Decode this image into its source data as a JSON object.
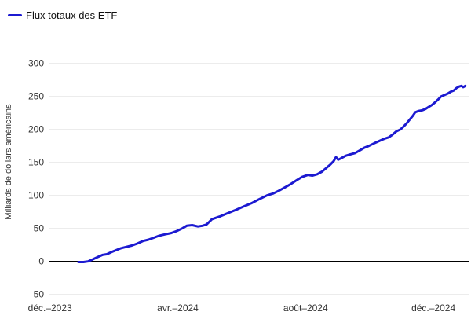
{
  "legend": {
    "label": "Flux totaux des ETF",
    "marker_color": "#1c1ad1"
  },
  "chart_data": {
    "type": "line",
    "title": "",
    "ylabel": "Milliards de dollars américains",
    "xlabel": "",
    "ylim": [
      -50,
      300
    ],
    "xlim_months_since_dec2023": [
      0,
      13.2
    ],
    "grid": true,
    "legend_position": "top-left",
    "y_ticks": [
      300,
      250,
      200,
      150,
      100,
      50,
      0,
      -50
    ],
    "y_tick_labels": [
      "300",
      "250",
      "200",
      "150",
      "100",
      "50",
      "0",
      "-50"
    ],
    "x_ticks": [
      {
        "m": 0,
        "label": "déc.–2023"
      },
      {
        "m": 4,
        "label": "avr.–2024"
      },
      {
        "m": 8,
        "label": "août–2024"
      },
      {
        "m": 12,
        "label": "déc.–2024"
      }
    ],
    "series": [
      {
        "name": "Flux totaux des ETF",
        "color": "#1c1ad1",
        "points_months_value_billions": [
          [
            0.89,
            -1
          ],
          [
            1.05,
            -1
          ],
          [
            1.19,
            0
          ],
          [
            1.33,
            3
          ],
          [
            1.51,
            7
          ],
          [
            1.65,
            10
          ],
          [
            1.78,
            11
          ],
          [
            1.92,
            14
          ],
          [
            2.07,
            17
          ],
          [
            2.22,
            20
          ],
          [
            2.39,
            22
          ],
          [
            2.56,
            24
          ],
          [
            2.73,
            27
          ],
          [
            2.91,
            31
          ],
          [
            3.08,
            33
          ],
          [
            3.25,
            36
          ],
          [
            3.42,
            39
          ],
          [
            3.59,
            41
          ],
          [
            3.79,
            43
          ],
          [
            3.96,
            46
          ],
          [
            4.14,
            50
          ],
          [
            4.28,
            54
          ],
          [
            4.45,
            55
          ],
          [
            4.63,
            53
          ],
          [
            4.77,
            54
          ],
          [
            4.9,
            56
          ],
          [
            5.07,
            64
          ],
          [
            5.31,
            68
          ],
          [
            5.56,
            73
          ],
          [
            5.81,
            78
          ],
          [
            6.05,
            83
          ],
          [
            6.3,
            88
          ],
          [
            6.54,
            94
          ],
          [
            6.79,
            100
          ],
          [
            6.99,
            103
          ],
          [
            7.16,
            107
          ],
          [
            7.35,
            112
          ],
          [
            7.53,
            117
          ],
          [
            7.72,
            123
          ],
          [
            7.89,
            128
          ],
          [
            8.07,
            131
          ],
          [
            8.21,
            130
          ],
          [
            8.36,
            132
          ],
          [
            8.51,
            136
          ],
          [
            8.66,
            142
          ],
          [
            8.78,
            147
          ],
          [
            8.88,
            152
          ],
          [
            8.95,
            158
          ],
          [
            9.02,
            154
          ],
          [
            9.1,
            156
          ],
          [
            9.25,
            160
          ],
          [
            9.39,
            162
          ],
          [
            9.54,
            164
          ],
          [
            9.69,
            168
          ],
          [
            9.83,
            172
          ],
          [
            9.98,
            175
          ],
          [
            10.15,
            179
          ],
          [
            10.33,
            183
          ],
          [
            10.47,
            186
          ],
          [
            10.6,
            188
          ],
          [
            10.72,
            192
          ],
          [
            10.84,
            197
          ],
          [
            10.97,
            200
          ],
          [
            11.06,
            204
          ],
          [
            11.16,
            209
          ],
          [
            11.26,
            215
          ],
          [
            11.36,
            221
          ],
          [
            11.43,
            226
          ],
          [
            11.53,
            228
          ],
          [
            11.65,
            229
          ],
          [
            11.75,
            231
          ],
          [
            11.85,
            234
          ],
          [
            11.95,
            237
          ],
          [
            12.05,
            241
          ],
          [
            12.14,
            245
          ],
          [
            12.24,
            250
          ],
          [
            12.34,
            252
          ],
          [
            12.44,
            254
          ],
          [
            12.54,
            257
          ],
          [
            12.64,
            259
          ],
          [
            12.73,
            263
          ],
          [
            12.81,
            265
          ],
          [
            12.88,
            266
          ],
          [
            12.93,
            264
          ],
          [
            13.0,
            266
          ]
        ]
      }
    ],
    "colors": {
      "line": "#1c1ad1",
      "gridline": "#e6e6e6",
      "zero_axis": "#000000",
      "tick_label": "#333333",
      "background": "#ffffff"
    }
  }
}
